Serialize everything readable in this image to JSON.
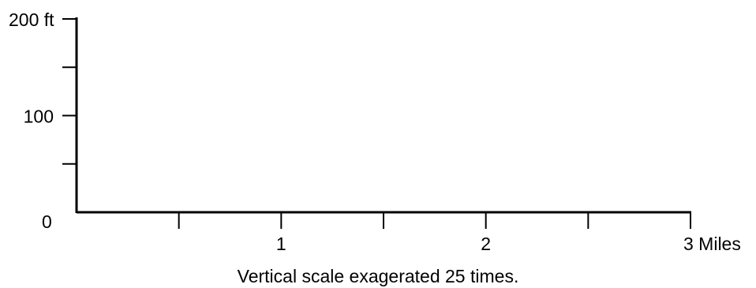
{
  "vertical_scale": {
    "max_value": 200,
    "ticks": [
      {
        "value": 0,
        "label": "0"
      },
      {
        "value": 50,
        "label": ""
      },
      {
        "value": 100,
        "label": "100"
      },
      {
        "value": 150,
        "label": ""
      },
      {
        "value": 200,
        "label": "200 ft"
      }
    ]
  },
  "horizontal_scale": {
    "max_value": 3,
    "ticks": [
      {
        "value": 0.5,
        "label": ""
      },
      {
        "value": 1,
        "label": "1"
      },
      {
        "value": 1.5,
        "label": ""
      },
      {
        "value": 2,
        "label": "2"
      },
      {
        "value": 2.5,
        "label": ""
      },
      {
        "value": 3,
        "label": "3 Miles"
      }
    ]
  },
  "caption": "Vertical scale exagerated 25 times."
}
